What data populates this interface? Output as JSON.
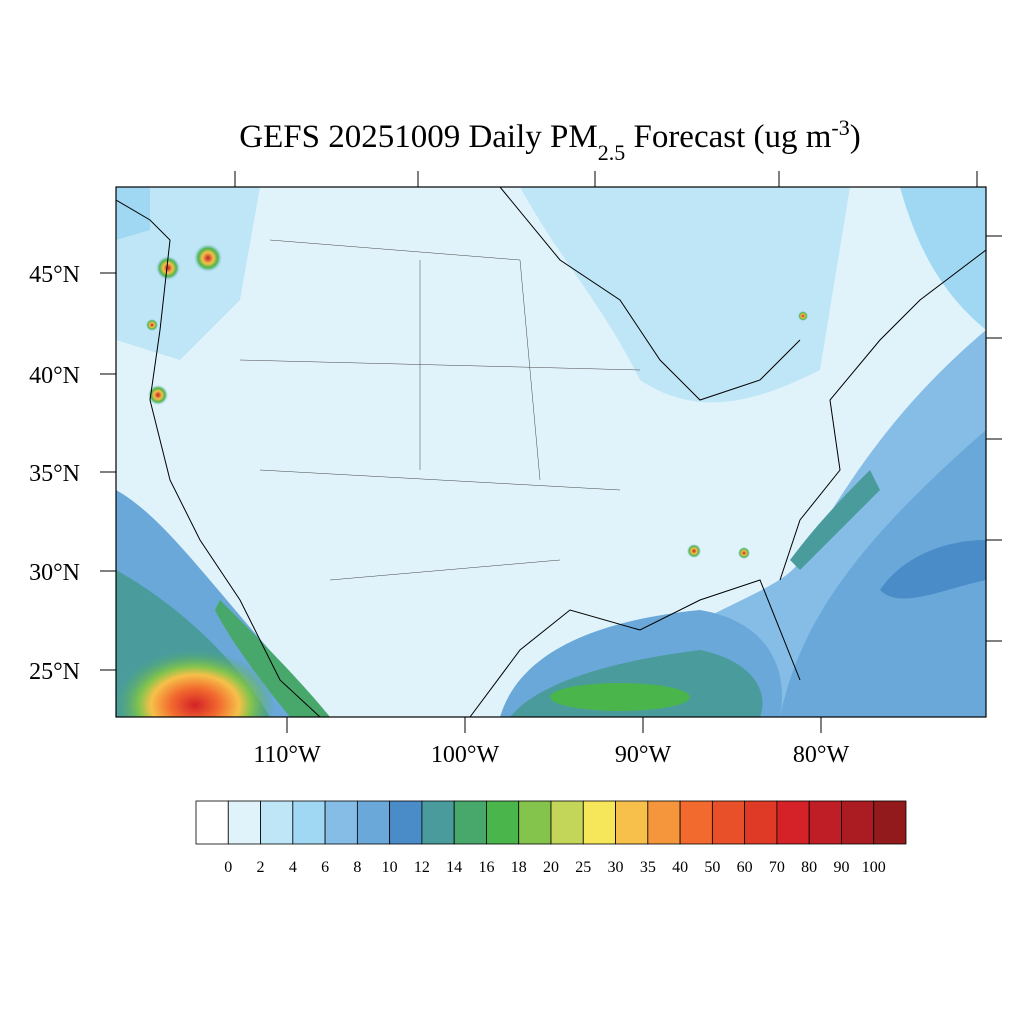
{
  "title": {
    "main": "GEFS 20251009 Daily PM",
    "sub": "2.5",
    "mid": " Forecast (ug m",
    "sup": "-3",
    "end": ")"
  },
  "map": {
    "lat_labels": [
      "45°N",
      "40°N",
      "35°N",
      "30°N",
      "25°N"
    ],
    "lon_labels": [
      "110°W",
      "100°W",
      "90°W",
      "80°W"
    ]
  },
  "colorbar": {
    "colors": [
      "#ffffff",
      "#e0f3fb",
      "#bfe6f7",
      "#a0d8f4",
      "#85bde6",
      "#6aa8da",
      "#4a8cc8",
      "#4a9c9c",
      "#48a86c",
      "#4ab54a",
      "#84c44c",
      "#c4d65a",
      "#f6e65a",
      "#f6c04a",
      "#f6963c",
      "#f26a2e",
      "#e8502a",
      "#df3a26",
      "#d42228",
      "#c01e26",
      "#aa1c22",
      "#921a1c"
    ],
    "levels": [
      0,
      2,
      4,
      6,
      8,
      10,
      12,
      14,
      16,
      18,
      20,
      25,
      30,
      35,
      40,
      50,
      60,
      70,
      80,
      90,
      100
    ]
  }
}
